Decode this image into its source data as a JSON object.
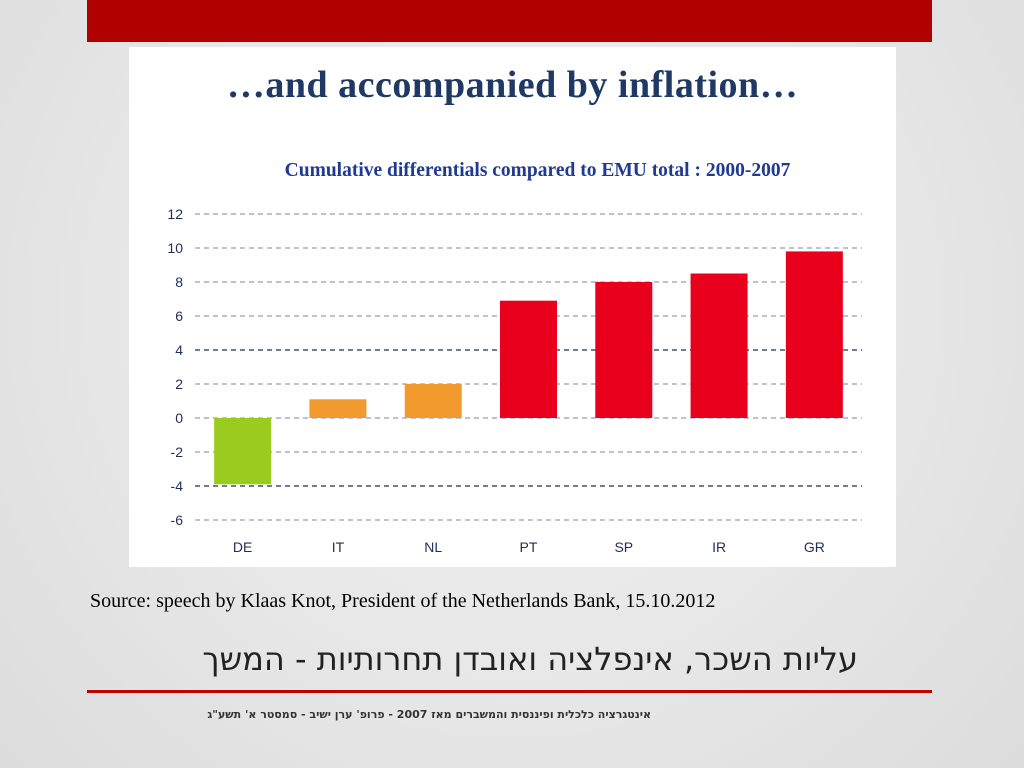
{
  "slide": {
    "heading": "…and accompanied by inflation…",
    "source": "Source: speech by Klaas Knot, President of the Netherlands Bank, 15.10.2012",
    "hebrew_title": "עליות השכר, אינפלציה ואובדן תחרותיות - המשך",
    "footer": "אינטגרציה כלכלית ופיננסית והמשברים מאז 2007 - פרופ' ערן ישיב - סמסטר א' תשע\"ג"
  },
  "colors": {
    "top_bar": "#b00000",
    "rule": "#c00000",
    "green": "#99cc1f",
    "orange": "#f39a2e",
    "red": "#e8001c"
  },
  "chart_data": {
    "type": "bar",
    "title": "Cumulative differentials compared to EMU total : 2000-2007",
    "xlabel": "",
    "ylabel": "",
    "categories": [
      "DE",
      "IT",
      "NL",
      "PT",
      "SP",
      "IR",
      "GR"
    ],
    "values": [
      -3.9,
      1.1,
      2.0,
      6.9,
      8.0,
      8.5,
      9.8
    ],
    "bar_colors": [
      "#99cc1f",
      "#f39a2e",
      "#f39a2e",
      "#e8001c",
      "#e8001c",
      "#e8001c",
      "#e8001c"
    ],
    "ylim": [
      -6,
      12
    ],
    "yticks": [
      12,
      10,
      8,
      6,
      4,
      2,
      0,
      -2,
      -4,
      -6
    ],
    "grid": true,
    "legend": "none"
  }
}
